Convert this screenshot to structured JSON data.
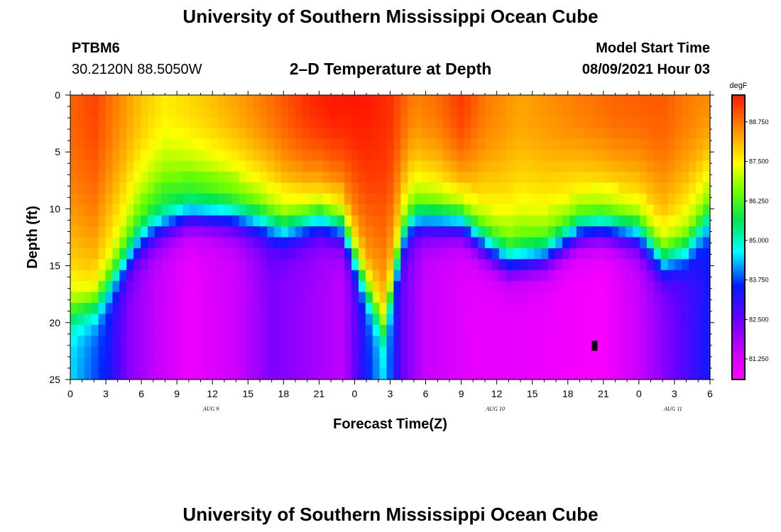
{
  "header": {
    "title_top": "University of Southern Mississippi Ocean Cube",
    "title_bottom": "University of Southern Mississippi Ocean Cube",
    "station": "PTBM6",
    "coords": "30.2120N  88.5050W",
    "plot_title": "2–D Temperature at Depth",
    "model_label": "Model Start Time",
    "model_time": "08/09/2021 Hour 03"
  },
  "chart_data": {
    "type": "heatmap",
    "title": "2–D Temperature at Depth",
    "xlabel": "Forecast Time(Z)",
    "ylabel": "Depth (ft)",
    "x_range_hours": [
      0,
      54
    ],
    "y_range": [
      0,
      25
    ],
    "x_tick_labels": [
      "0",
      "3",
      "6",
      "9",
      "12",
      "15",
      "18",
      "21",
      "0",
      "3",
      "6",
      "9",
      "12",
      "15",
      "18",
      "21",
      "0",
      "3",
      "6"
    ],
    "date_labels": [
      {
        "label": "AUG 9",
        "hour": 12
      },
      {
        "label": "AUG 10",
        "hour": 36
      },
      {
        "label": "AUG 11",
        "hour": 51
      }
    ],
    "y_ticks": [
      0,
      5,
      10,
      15,
      20,
      25
    ],
    "colorbar": {
      "unit": "degF",
      "min": 80.6,
      "max": 89.6,
      "ticks": [
        "81.250",
        "82.500",
        "83.750",
        "85.000",
        "86.250",
        "87.500",
        "88.750"
      ],
      "tick_values": [
        81.25,
        82.5,
        83.75,
        85.0,
        86.25,
        87.5,
        88.75
      ]
    },
    "field": {
      "surface_temp_by_hour": [
        [
          0,
          88.9
        ],
        [
          2,
          89.2
        ],
        [
          4,
          88.6
        ],
        [
          6,
          88.0
        ],
        [
          8,
          87.6
        ],
        [
          11,
          87.9
        ],
        [
          14,
          88.3
        ],
        [
          17,
          88.8
        ],
        [
          20,
          89.4
        ],
        [
          22,
          89.6
        ],
        [
          25,
          89.6
        ],
        [
          27,
          89.4
        ],
        [
          29,
          88.6
        ],
        [
          31,
          88.8
        ],
        [
          33,
          89.3
        ],
        [
          35,
          88.7
        ],
        [
          38,
          88.3
        ],
        [
          42,
          88.6
        ],
        [
          46,
          88.9
        ],
        [
          50,
          89.0
        ],
        [
          52,
          88.7
        ],
        [
          54,
          88.5
        ]
      ],
      "thermocline_depth_ft_by_hour": [
        [
          0,
          20.5
        ],
        [
          2,
          20.0
        ],
        [
          4,
          17.0
        ],
        [
          5.5,
          14.5
        ],
        [
          7,
          13.2
        ],
        [
          10,
          12.0
        ],
        [
          13,
          12.0
        ],
        [
          16,
          12.5
        ],
        [
          18,
          13.2
        ],
        [
          21,
          12.2
        ],
        [
          23,
          13.0
        ],
        [
          25,
          18.5
        ],
        [
          26.5,
          22.0
        ],
        [
          28,
          14.0
        ],
        [
          29,
          12.3
        ],
        [
          33,
          12.5
        ],
        [
          35,
          14.5
        ],
        [
          37,
          16.0
        ],
        [
          40,
          15.5
        ],
        [
          43,
          13.3
        ],
        [
          45,
          13.0
        ],
        [
          48,
          13.5
        ],
        [
          50,
          16.0
        ],
        [
          52,
          15.0
        ],
        [
          54,
          12.0
        ]
      ],
      "deep_temp_by_hour": [
        [
          0,
          84.5
        ],
        [
          3,
          83.5
        ],
        [
          5,
          82.2
        ],
        [
          7,
          81.6
        ],
        [
          10,
          80.9
        ],
        [
          14,
          81.4
        ],
        [
          17,
          82.3
        ],
        [
          20,
          82.0
        ],
        [
          23,
          81.6
        ],
        [
          25,
          83.5
        ],
        [
          26.5,
          84.5
        ],
        [
          28,
          82.5
        ],
        [
          30,
          81.5
        ],
        [
          34,
          81.0
        ],
        [
          38,
          81.0
        ],
        [
          42,
          80.8
        ],
        [
          45,
          80.7
        ],
        [
          48,
          81.5
        ],
        [
          51,
          82.5
        ],
        [
          54,
          83.4
        ]
      ],
      "grid": {
        "time_cells": 91,
        "depth_cells": 26
      }
    }
  }
}
